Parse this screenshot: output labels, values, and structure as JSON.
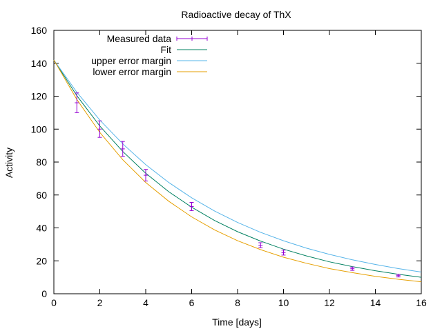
{
  "chart_data": {
    "type": "line",
    "title": "Radioactive decay of ThX",
    "xlabel": "Time [days]",
    "ylabel": "Activity",
    "xlim": [
      0,
      16
    ],
    "ylim": [
      0,
      160
    ],
    "xticks": [
      0,
      2,
      4,
      6,
      8,
      10,
      12,
      14,
      16
    ],
    "yticks": [
      0,
      20,
      40,
      60,
      80,
      100,
      120,
      140,
      160
    ],
    "grid": false,
    "legend_position": "top-left",
    "series": [
      {
        "name": "Measured data",
        "kind": "errorbars",
        "color": "#9400D3",
        "points": [
          {
            "x": 1,
            "y": 116,
            "err": 6
          },
          {
            "x": 2,
            "y": 100,
            "err": 5
          },
          {
            "x": 3,
            "y": 88,
            "err": 4.5
          },
          {
            "x": 4,
            "y": 72,
            "err": 3.5
          },
          {
            "x": 6,
            "y": 53,
            "err": 2.5
          },
          {
            "x": 9,
            "y": 29.5,
            "err": 1.5
          },
          {
            "x": 10,
            "y": 25,
            "err": 1.5
          },
          {
            "x": 13,
            "y": 15.2,
            "err": 1
          },
          {
            "x": 15,
            "y": 11,
            "err": 0.8
          }
        ]
      },
      {
        "name": "Fit",
        "kind": "line",
        "color": "#008060",
        "x": [
          0,
          1,
          2,
          3,
          4,
          5,
          6,
          7,
          8,
          9,
          10,
          11,
          12,
          13,
          14,
          15,
          16
        ],
        "y": [
          142,
          120.3,
          101.9,
          86.4,
          73.2,
          62,
          52.6,
          44.5,
          37.7,
          32,
          27.1,
          23,
          19.4,
          16.5,
          14,
          11.8,
          10
        ]
      },
      {
        "name": "upper error margin",
        "kind": "line",
        "color": "#56B4E9",
        "x": [
          0,
          1,
          2,
          3,
          4,
          5,
          6,
          7,
          8,
          9,
          10,
          11,
          12,
          13,
          14,
          15,
          16
        ],
        "y": [
          142,
          122.4,
          105.5,
          91,
          78.4,
          67.6,
          58.3,
          50.2,
          43.3,
          37.3,
          32.2,
          27.7,
          23.9,
          20.6,
          17.8,
          15.3,
          13.2
        ]
      },
      {
        "name": "lower error margin",
        "kind": "line",
        "color": "#E69F00",
        "x": [
          0,
          1,
          2,
          3,
          4,
          5,
          6,
          7,
          8,
          9,
          10,
          11,
          12,
          13,
          14,
          15,
          16
        ],
        "y": [
          142,
          118,
          98,
          81.4,
          67.6,
          56.2,
          46.7,
          38.8,
          32.2,
          26.8,
          22.2,
          18.5,
          15.3,
          12.8,
          10.6,
          8.8,
          7.3
        ]
      }
    ]
  }
}
